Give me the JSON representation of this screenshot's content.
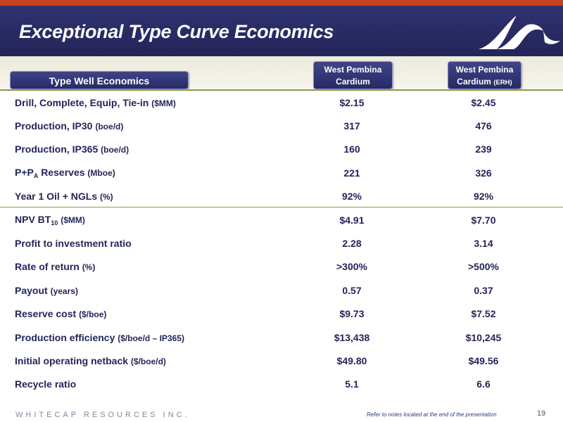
{
  "slide": {
    "title": "Exceptional Type Curve Economics"
  },
  "colors": {
    "header_navy": "#232559",
    "accent_orange": "#c8441f",
    "rule_olive": "#8f9a49",
    "text_navy": "#232559"
  },
  "logo": {
    "icon": "wave-logo-icon"
  },
  "table": {
    "section_label": "Type Well Economics",
    "columns": [
      {
        "line1": "West Pembina",
        "line2": "Cardium",
        "note": ""
      },
      {
        "line1": "West Pembina",
        "line2": "Cardium",
        "note": "(ERH)"
      }
    ],
    "rows": [
      {
        "main": "Drill, Complete, Equip, Tie-in ",
        "sub": "",
        "after": "",
        "unit": "($MM)",
        "v1": "$2.15",
        "v2": "$2.45"
      },
      {
        "main": "Production, IP30 ",
        "sub": "",
        "after": "",
        "unit": "(boe/d)",
        "v1": "317",
        "v2": "476"
      },
      {
        "main": "Production, IP365 ",
        "sub": "",
        "after": "",
        "unit": "(boe/d)",
        "v1": "160",
        "v2": "239"
      },
      {
        "main": "P+P",
        "sub": "A",
        "after": " Reserves ",
        "unit": "(Mboe)",
        "v1": "221",
        "v2": "326"
      },
      {
        "main": "Year 1 Oil + NGLs ",
        "sub": "",
        "after": "",
        "unit": "(%)",
        "v1": "92%",
        "v2": "92%"
      },
      {
        "main": "NPV BT",
        "sub": "10",
        "after": " ",
        "unit": "($MM)",
        "v1": "$4.91",
        "v2": "$7.70"
      },
      {
        "main": "Profit to investment ratio",
        "sub": "",
        "after": "",
        "unit": "",
        "v1": "2.28",
        "v2": "3.14"
      },
      {
        "main": "Rate of return ",
        "sub": "",
        "after": "",
        "unit": "(%)",
        "v1": ">300%",
        "v2": ">500%"
      },
      {
        "main": "Payout ",
        "sub": "",
        "after": "",
        "unit": "(years)",
        "v1": "0.57",
        "v2": "0.37"
      },
      {
        "main": "Reserve cost ",
        "sub": "",
        "after": "",
        "unit": "($/boe)",
        "v1": "$9.73",
        "v2": "$7.52"
      },
      {
        "main": "Production efficiency ",
        "sub": "",
        "after": "",
        "unit": "($/boe/d – IP365)",
        "v1": "$13,438",
        "v2": "$10,245"
      },
      {
        "main": "Initial operating netback ",
        "sub": "",
        "after": "",
        "unit": "($/boe/d)",
        "v1": "$49.80",
        "v2": "$49.56"
      },
      {
        "main": "Recycle ratio",
        "sub": "",
        "after": "",
        "unit": "",
        "v1": "5.1",
        "v2": "6.6"
      }
    ]
  },
  "footer": {
    "company": "WHITECAP RESOURCES INC.",
    "note": "Refer to notes located at the end of the presentation",
    "page": "19"
  }
}
